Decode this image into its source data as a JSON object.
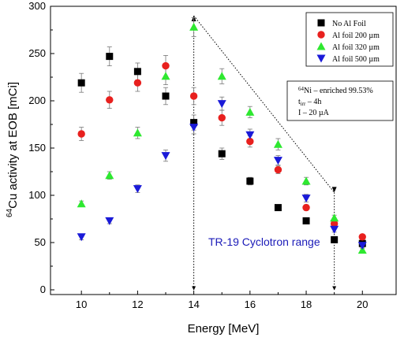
{
  "chart_data": {
    "type": "scatter",
    "xlabel": "Energy [MeV]",
    "ylabel_sup": "64",
    "ylabel_rest": "Cu activity at EOB [mCi]",
    "xlim": [
      8.9,
      21.2
    ],
    "ylim": [
      -5,
      300
    ],
    "xticks": [
      10,
      12,
      14,
      16,
      18,
      20
    ],
    "yticks": [
      0,
      50,
      100,
      150,
      200,
      250,
      300
    ],
    "legend_position": "top-right",
    "series": [
      {
        "name": "No Al Foil",
        "marker": "square",
        "color": "#000000",
        "x": [
          10,
          11,
          12,
          13,
          14,
          15,
          16,
          17,
          18,
          19,
          20
        ],
        "y": [
          219,
          247,
          231,
          205,
          177,
          144,
          115,
          87,
          73,
          53,
          49
        ],
        "err": [
          10,
          10,
          9,
          9,
          8,
          6,
          4,
          3,
          3,
          2,
          2
        ]
      },
      {
        "name": "Al foil 200 µm",
        "marker": "circle",
        "color": "#e8201e",
        "x": [
          10,
          11,
          12,
          13,
          14,
          15,
          16,
          17,
          18,
          19,
          20
        ],
        "y": [
          165,
          201,
          219,
          237,
          205,
          182,
          157,
          127,
          87,
          70,
          56
        ],
        "err": [
          7,
          9,
          9,
          11,
          9,
          8,
          6,
          4,
          3,
          2,
          2
        ]
      },
      {
        "name": "Al foil 320 µm",
        "marker": "triangle-up",
        "color": "#2ee830",
        "x": [
          10,
          11,
          12,
          13,
          14,
          15,
          16,
          17,
          18,
          19,
          20
        ],
        "y": [
          91,
          121,
          166,
          226,
          278,
          226,
          188,
          154,
          115,
          76,
          42
        ],
        "err": [
          3,
          4,
          6,
          9,
          10,
          8,
          6,
          6,
          4,
          3,
          2
        ]
      },
      {
        "name": "Al foil 500 µm",
        "marker": "triangle-down",
        "color": "#1a1ad8",
        "x": [
          10,
          11,
          12,
          13,
          14,
          15,
          16,
          17,
          18,
          19,
          20
        ],
        "y": [
          56,
          73,
          107,
          142,
          172,
          197,
          164,
          137,
          97,
          64,
          47
        ],
        "err": [
          3,
          3,
          4,
          6,
          7,
          7,
          6,
          5,
          4,
          3,
          2
        ]
      }
    ],
    "annotation": {
      "line1_sup": "64",
      "line1_rest": "Ni – enriched 99.53%",
      "line2_main": "t",
      "line2_sub": "irr",
      "line2_rest": " – 4h",
      "line3": "I – 20 µA"
    },
    "range_label": "TR-19 Cyclotron range",
    "range_outline": {
      "x": [
        14,
        14,
        19,
        19
      ],
      "y": [
        0,
        290,
        103,
        0
      ]
    }
  }
}
